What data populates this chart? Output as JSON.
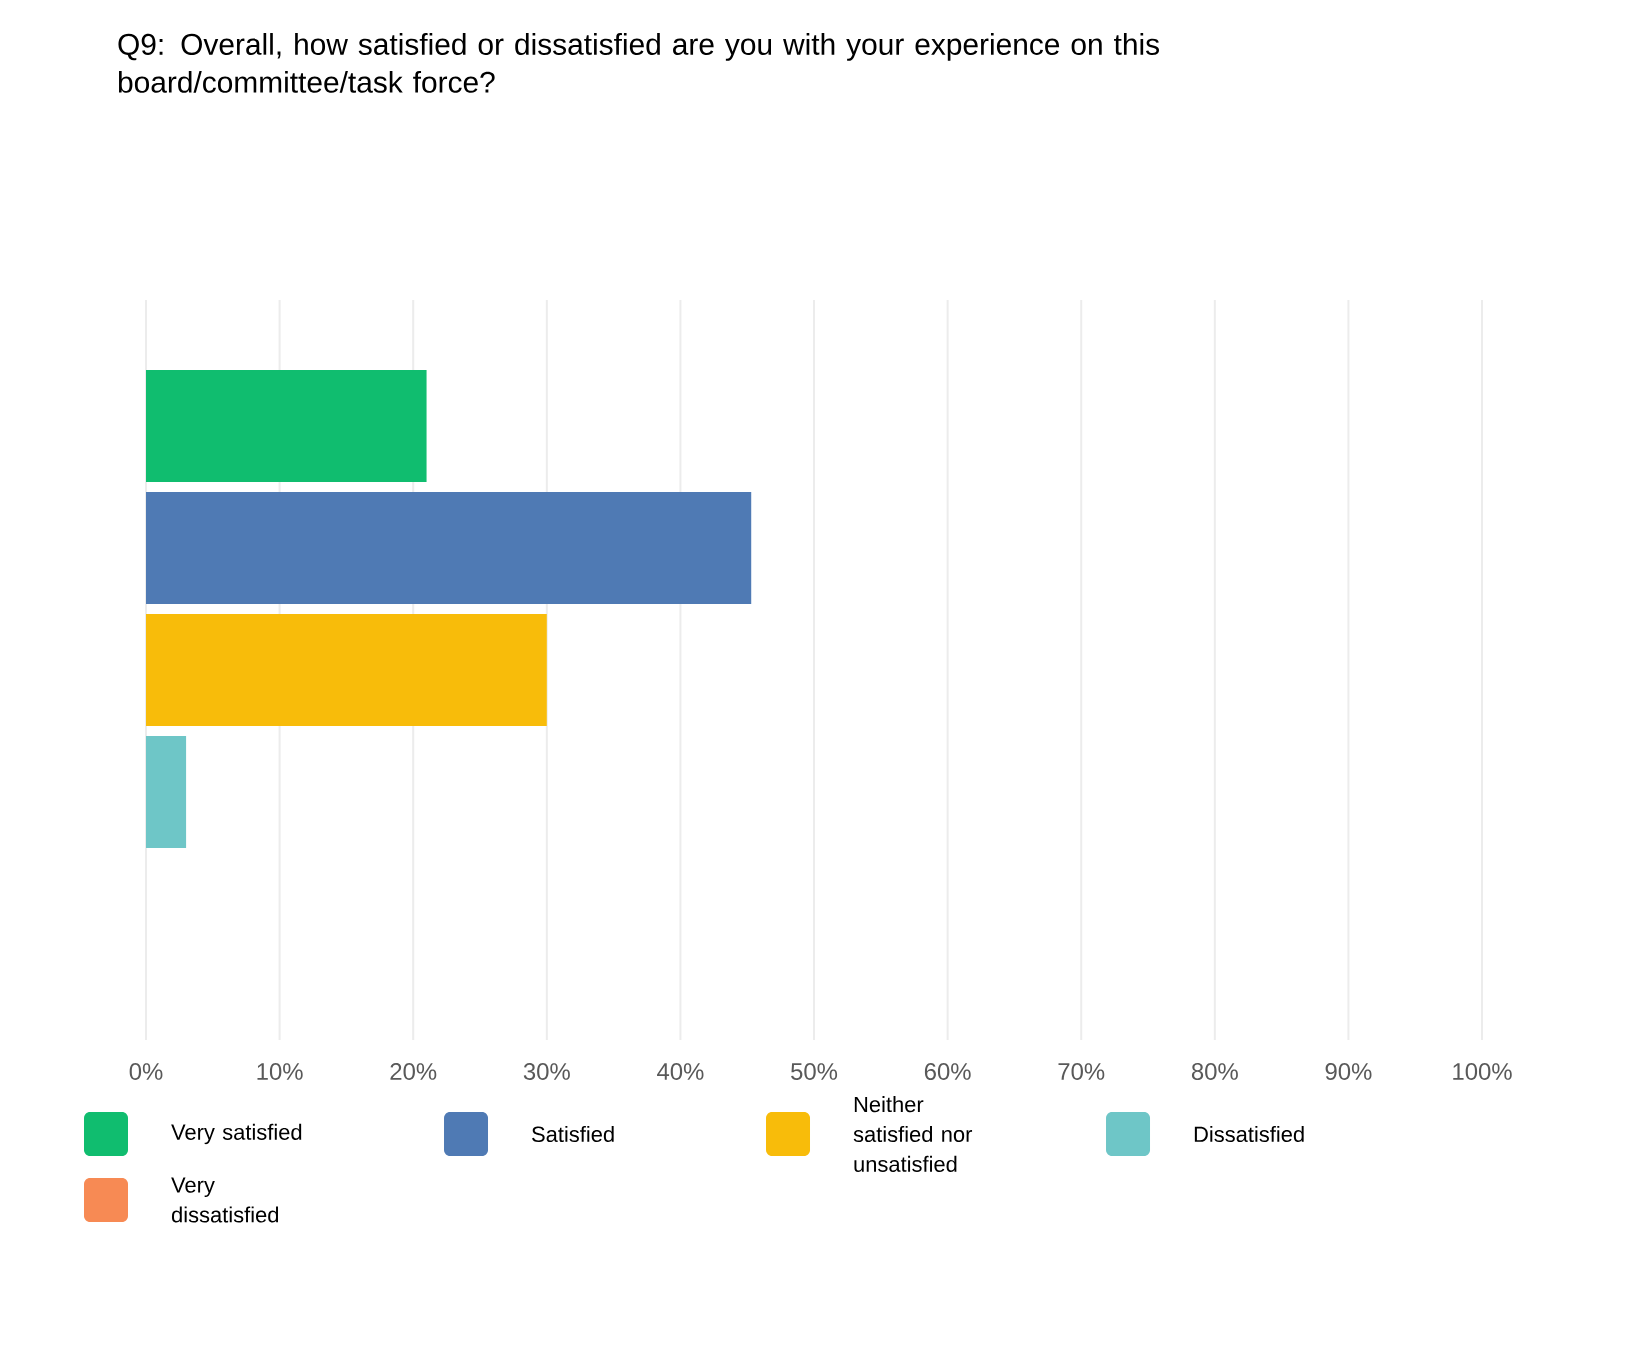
{
  "chart_data": {
    "type": "bar",
    "orientation": "horizontal",
    "title": "Q9:  Overall, how satisfied or dissatisfied are you with your experience on this board/committee/task force?",
    "categories": [
      null
    ],
    "series": [
      {
        "name": "Very satisfied",
        "color": "#10bd6f",
        "values": [
          21
        ]
      },
      {
        "name": "Satisfied",
        "color": "#4f7ab4",
        "values": [
          45.3
        ]
      },
      {
        "name": "Neither satisfied nor unsatisfied",
        "color": "#f8bc0a",
        "values": [
          30
        ]
      },
      {
        "name": "Dissatisfied",
        "color": "#6ec6c7",
        "values": [
          3
        ]
      },
      {
        "name": "Very dissatisfied",
        "color": "#f78a54",
        "values": [
          0
        ]
      }
    ],
    "xlim": [
      0,
      100
    ],
    "xticks": [
      {
        "value": 0,
        "label": "0%"
      },
      {
        "value": 10,
        "label": "10%"
      },
      {
        "value": 20,
        "label": "20%"
      },
      {
        "value": 30,
        "label": "30%"
      },
      {
        "value": 40,
        "label": "40%"
      },
      {
        "value": 50,
        "label": "50%"
      },
      {
        "value": 60,
        "label": "60%"
      },
      {
        "value": 70,
        "label": "70%"
      },
      {
        "value": 80,
        "label": "80%"
      },
      {
        "value": 90,
        "label": "90%"
      },
      {
        "value": 100,
        "label": "100%"
      }
    ],
    "grid": "x",
    "legend": "bottom"
  }
}
